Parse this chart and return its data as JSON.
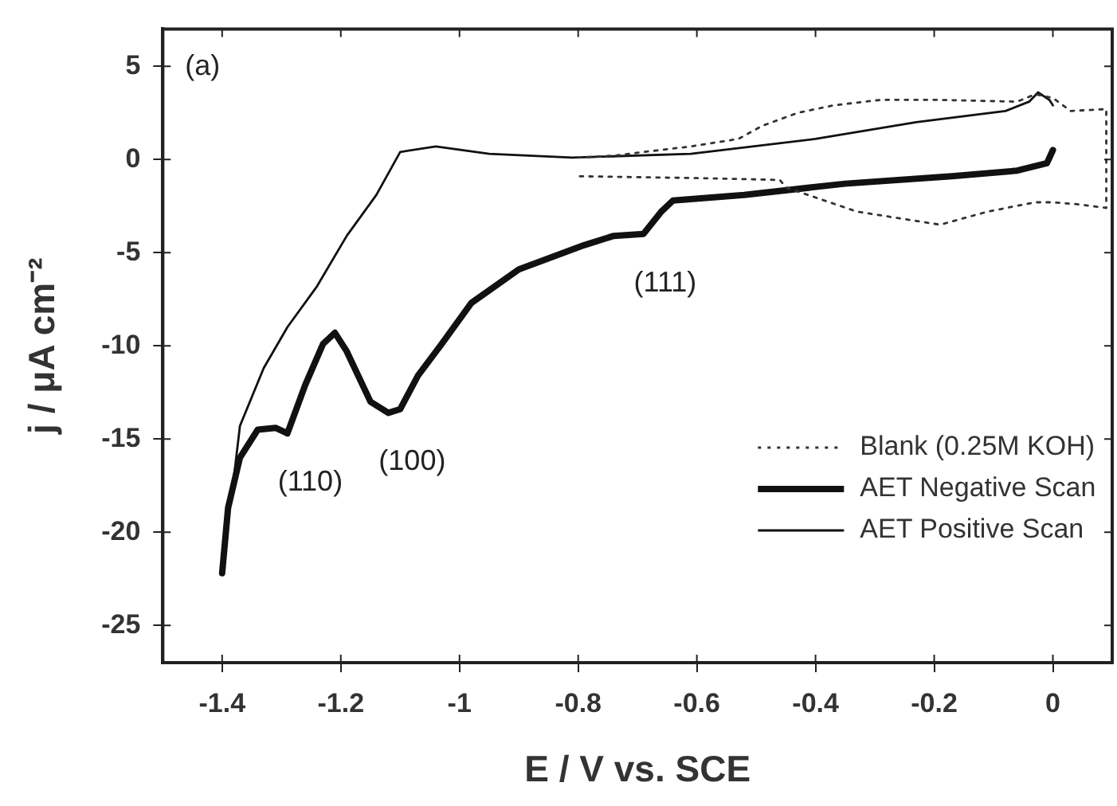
{
  "chart_data": {
    "type": "line",
    "xlabel": "E / V vs. SCE",
    "ylabel": "j / μA cm⁻²",
    "xlim": [
      -1.5,
      0.1
    ],
    "xticks": [
      -1.4,
      -1.2,
      -1,
      -0.8,
      -0.6,
      -0.4,
      -0.2,
      0
    ],
    "ylim": [
      -27,
      7
    ],
    "yticks": [
      -25,
      -20,
      -15,
      -10,
      -5,
      0,
      5
    ],
    "grid": false,
    "legend": "bottom right",
    "marker": "none",
    "annotations": [
      "(a)",
      {
        "text": "(110)",
        "x": -1.29,
        "y": -14.7
      },
      {
        "text": "(100)",
        "x": -1.12,
        "y": -13.6
      },
      {
        "text": "(111)",
        "x": -0.69,
        "y": -4
      }
    ],
    "series": [
      {
        "name": "Blank (0.25M KOH)",
        "color": "#333333",
        "line_style": "dotted",
        "x": [
          -0.8,
          -0.74,
          -0.69,
          -0.61,
          -0.53,
          -0.49,
          -0.43,
          -0.37,
          -0.29,
          -0.2,
          -0.06,
          -0.03,
          0.0,
          0.03,
          0.09,
          0.09,
          0.04,
          0.0,
          -0.03,
          -0.11,
          -0.19,
          -0.33,
          -0.45,
          -0.46,
          -0.6,
          -0.8
        ],
        "values": [
          0.1,
          0.2,
          0.4,
          0.7,
          1.1,
          1.8,
          2.5,
          2.9,
          3.2,
          3.2,
          3.1,
          3.5,
          3.3,
          2.6,
          2.7,
          -2.6,
          -2.4,
          -2.3,
          -2.3,
          -2.8,
          -3.5,
          -2.8,
          -1.5,
          -1.1,
          -1.0,
          -0.9
        ]
      },
      {
        "name": "AET Negative Scan",
        "color": "#111111",
        "line_style": "solid",
        "x": [
          0.0,
          -0.01,
          -0.06,
          -0.17,
          -0.35,
          -0.52,
          -0.64,
          -0.66,
          -0.69,
          -0.74,
          -0.79,
          -0.9,
          -0.98,
          -1.03,
          -1.07,
          -1.1,
          -1.12,
          -1.15,
          -1.19,
          -1.21,
          -1.23,
          -1.26,
          -1.29,
          -1.31,
          -1.34,
          -1.37,
          -1.39,
          -1.4
        ],
        "values": [
          0.5,
          -0.2,
          -0.6,
          -0.9,
          -1.3,
          -1.9,
          -2.2,
          -2.8,
          -4,
          -4.1,
          -4.6,
          -5.9,
          -7.7,
          -9.9,
          -11.6,
          -13.4,
          -13.6,
          -13,
          -10.3,
          -9.3,
          -9.9,
          -12.1,
          -14.7,
          -14.4,
          -14.5,
          -16,
          -18.7,
          -22.2
        ]
      },
      {
        "name": "AET Positive Scan",
        "color": "#111111",
        "line_style": "solid",
        "x": [
          -1.4,
          -1.39,
          -1.38,
          -1.37,
          -1.33,
          -1.29,
          -1.24,
          -1.19,
          -1.14,
          -1.1,
          -1.04,
          -0.95,
          -0.81,
          -0.61,
          -0.4,
          -0.23,
          -0.08,
          -0.04,
          -0.025,
          -0.006,
          0.0
        ],
        "values": [
          -22,
          -19,
          -17,
          -14.3,
          -11.2,
          -9,
          -6.8,
          -4.1,
          -1.9,
          0.4,
          0.7,
          0.3,
          0.1,
          0.3,
          1.1,
          2,
          2.6,
          3.1,
          3.6,
          3.2,
          2.9
        ]
      }
    ]
  }
}
